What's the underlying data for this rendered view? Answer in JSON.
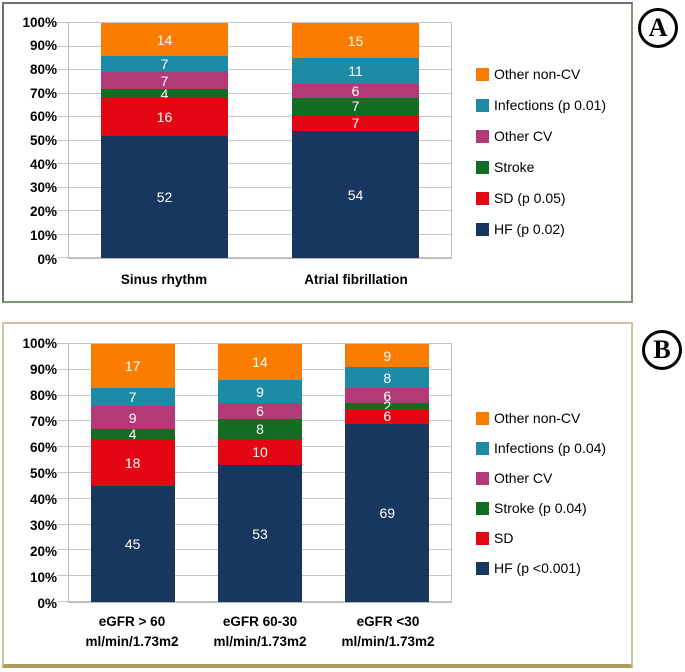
{
  "chart_data": [
    {
      "panel_label": "A",
      "type": "bar",
      "subtype": "100-percent-stacked-column",
      "title": "",
      "xlabel": "",
      "ylabel": "",
      "ylim": [
        0,
        100
      ],
      "grid": true,
      "legend_position": "right",
      "y_ticks": [
        "0%",
        "10%",
        "20%",
        "30%",
        "40%",
        "50%",
        "60%",
        "70%",
        "80%",
        "90%",
        "100%"
      ],
      "categories": [
        "Sinus rhythm",
        "Atrial fibrillation"
      ],
      "stack_order": "bottom-to-top",
      "series": [
        {
          "name": "HF (p 0.02)",
          "color": "#17375E",
          "values": [
            52,
            54
          ]
        },
        {
          "name": "SD (p 0.05)",
          "color": "#E30613",
          "values": [
            16,
            7
          ]
        },
        {
          "name": "Stroke",
          "color": "#116D21",
          "values": [
            4,
            7
          ]
        },
        {
          "name": "Other CV",
          "color": "#B23A77",
          "values": [
            7,
            6
          ]
        },
        {
          "name": "Infections (p 0.01)",
          "color": "#1D8BA5",
          "values": [
            7,
            11
          ]
        },
        {
          "name": "Other non-CV",
          "color": "#FA7D00",
          "values": [
            14,
            15
          ]
        }
      ],
      "legend_entries_top_to_bottom": [
        "Other non-CV",
        "Infections (p 0.01)",
        "Other CV",
        "Stroke",
        "SD (p 0.05)",
        "HF (p 0.02)"
      ]
    },
    {
      "panel_label": "B",
      "type": "bar",
      "subtype": "100-percent-stacked-column",
      "title": "",
      "xlabel": "",
      "ylabel": "",
      "ylim": [
        0,
        100
      ],
      "grid": true,
      "legend_position": "right",
      "y_ticks": [
        "0%",
        "10%",
        "20%",
        "30%",
        "40%",
        "50%",
        "60%",
        "70%",
        "80%",
        "90%",
        "100%"
      ],
      "categories": [
        "eGFR > 60\nml/min/1.73m2",
        "eGFR 60-30\nml/min/1.73m2",
        "eGFR <30\nml/min/1.73m2"
      ],
      "stack_order": "bottom-to-top",
      "series": [
        {
          "name": "HF (p <0.001)",
          "color": "#17375E",
          "values": [
            45,
            53,
            69
          ]
        },
        {
          "name": "SD",
          "color": "#E30613",
          "values": [
            18,
            10,
            6
          ]
        },
        {
          "name": "Stroke (p 0.04)",
          "color": "#116D21",
          "values": [
            4,
            8,
            2
          ]
        },
        {
          "name": "Other CV",
          "color": "#B23A77",
          "values": [
            9,
            6,
            6
          ]
        },
        {
          "name": "Infections (p 0.04)",
          "color": "#1D8BA5",
          "values": [
            7,
            9,
            8
          ]
        },
        {
          "name": "Other non-CV",
          "color": "#FA7D00",
          "values": [
            17,
            14,
            9
          ]
        }
      ],
      "legend_entries_top_to_bottom": [
        "Other non-CV",
        "Infections (p 0.04)",
        "Other CV",
        "Stroke (p 0.04)",
        "SD",
        "HF (p <0.001)"
      ]
    }
  ],
  "colors": {
    "hf_navy": "#17375E",
    "sd_red": "#E30613",
    "stroke_green": "#116D21",
    "other_cv_magenta": "#B23A77",
    "infections_teal": "#1D8BA5",
    "other_non_cv_orange": "#FA7D00",
    "gridline": "#C6C6C6",
    "panel_a_border": "#7F9478",
    "panel_b_border": "#AD9D5E"
  }
}
